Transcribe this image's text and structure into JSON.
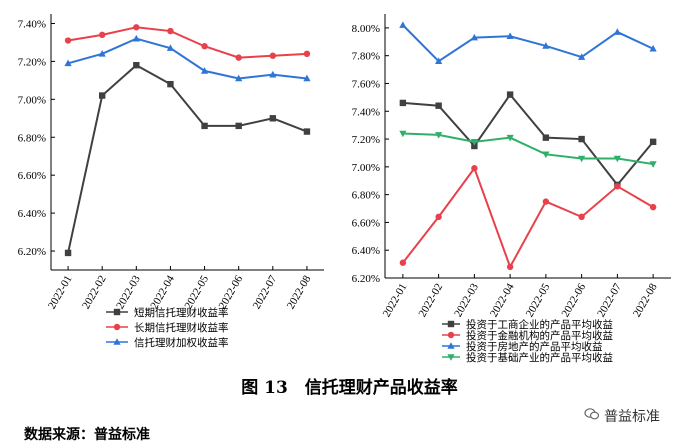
{
  "chart_data": [
    {
      "type": "line",
      "categories": [
        "2022-01",
        "2022-02",
        "2022-03",
        "2022-04",
        "2022-05",
        "2022-06",
        "2022-07",
        "2022-08"
      ],
      "ylim": [
        6.1,
        7.45
      ],
      "yticks": [
        "6.20%",
        "6.40%",
        "6.60%",
        "6.80%",
        "7.00%",
        "7.20%",
        "7.40%"
      ],
      "ytick_values": [
        6.2,
        6.4,
        6.6,
        6.8,
        7.0,
        7.2,
        7.4
      ],
      "legend_position": "bottom-center",
      "series": [
        {
          "name": "短期信托理财收益率",
          "color": "#404040",
          "marker": "square",
          "values": [
            6.19,
            7.02,
            7.18,
            7.08,
            6.86,
            6.86,
            6.9,
            6.83
          ]
        },
        {
          "name": "长期信托理财收益率",
          "color": "#e8414b",
          "marker": "circle",
          "values": [
            7.31,
            7.34,
            7.38,
            7.36,
            7.28,
            7.22,
            7.23,
            7.24
          ]
        },
        {
          "name": "信托理财加权收益率",
          "color": "#2e75d6",
          "marker": "triangle",
          "values": [
            7.19,
            7.24,
            7.32,
            7.27,
            7.15,
            7.11,
            7.13,
            7.11
          ]
        }
      ]
    },
    {
      "type": "line",
      "categories": [
        "2022-01",
        "2022-02",
        "2022-03",
        "2022-04",
        "2022-05",
        "2022-06",
        "2022-07",
        "2022-08"
      ],
      "ylim": [
        6.2,
        8.1
      ],
      "yticks": [
        "6.20%",
        "6.40%",
        "6.60%",
        "6.80%",
        "7.00%",
        "7.20%",
        "7.40%",
        "7.60%",
        "7.80%",
        "8.00%"
      ],
      "ytick_values": [
        6.2,
        6.4,
        6.6,
        6.8,
        7.0,
        7.2,
        7.4,
        7.6,
        7.8,
        8.0
      ],
      "legend_position": "bottom-center",
      "series": [
        {
          "name": "投资于工商企业的产品平均收益",
          "color": "#404040",
          "marker": "square",
          "values": [
            7.46,
            7.44,
            7.15,
            7.52,
            7.21,
            7.2,
            6.87,
            7.18
          ]
        },
        {
          "name": "投资于金融机构的产品平均收益",
          "color": "#e8414b",
          "marker": "circle",
          "values": [
            6.31,
            6.64,
            6.99,
            6.28,
            6.75,
            6.64,
            6.86,
            6.71
          ]
        },
        {
          "name": "投资于房地产的产品平均收益",
          "color": "#2e75d6",
          "marker": "triangle",
          "values": [
            8.02,
            7.76,
            7.93,
            7.94,
            7.87,
            7.79,
            7.97,
            7.85
          ]
        },
        {
          "name": "投资于基础产业的产品平均收益",
          "color": "#2fb06a",
          "marker": "triangle-down",
          "values": [
            7.24,
            7.23,
            7.18,
            7.21,
            7.09,
            7.06,
            7.06,
            7.02
          ]
        }
      ]
    }
  ],
  "caption": "图 13　信托理财产品收益率",
  "source": "数据来源：普益标准",
  "brand": "普益标准"
}
